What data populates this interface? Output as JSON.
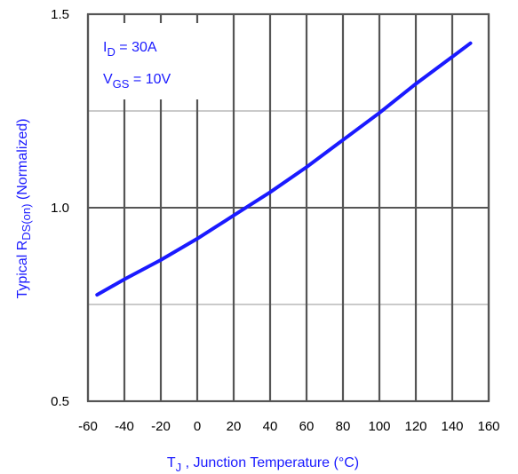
{
  "chart_data": {
    "type": "line",
    "x_ticks": [
      "-60",
      "-40",
      "-20",
      "0",
      "20",
      "40",
      "60",
      "80",
      "100",
      "120",
      "140",
      "160"
    ],
    "y_ticks": [
      "0.5",
      "1.0",
      "1.5"
    ],
    "xlim": [
      -60,
      160
    ],
    "ylim": [
      0.5,
      1.5
    ],
    "grid": true,
    "ylabel": {
      "prefix": "Typical  R",
      "sub": "DS(on)",
      "suffix": " (Normalized)"
    },
    "xlabel": {
      "main": "T",
      "sub": "J",
      "suffix": " , Junction Temperature (°C)"
    },
    "annotations": [
      {
        "main": "I",
        "sub": "D",
        "rest": " = 30A"
      },
      {
        "main": "V",
        "sub": "GS",
        "rest": " = 10V"
      }
    ],
    "series": [
      {
        "x": [
          -55,
          -40,
          -20,
          0,
          20,
          40,
          60,
          80,
          100,
          120,
          140,
          150
        ],
        "y": [
          0.775,
          0.815,
          0.865,
          0.92,
          0.98,
          1.04,
          1.105,
          1.175,
          1.245,
          1.32,
          1.39,
          1.425
        ]
      }
    ],
    "colors": {
      "line": "#1a1aff",
      "grid": "#000000",
      "axis_text": "#1a1aff"
    }
  }
}
